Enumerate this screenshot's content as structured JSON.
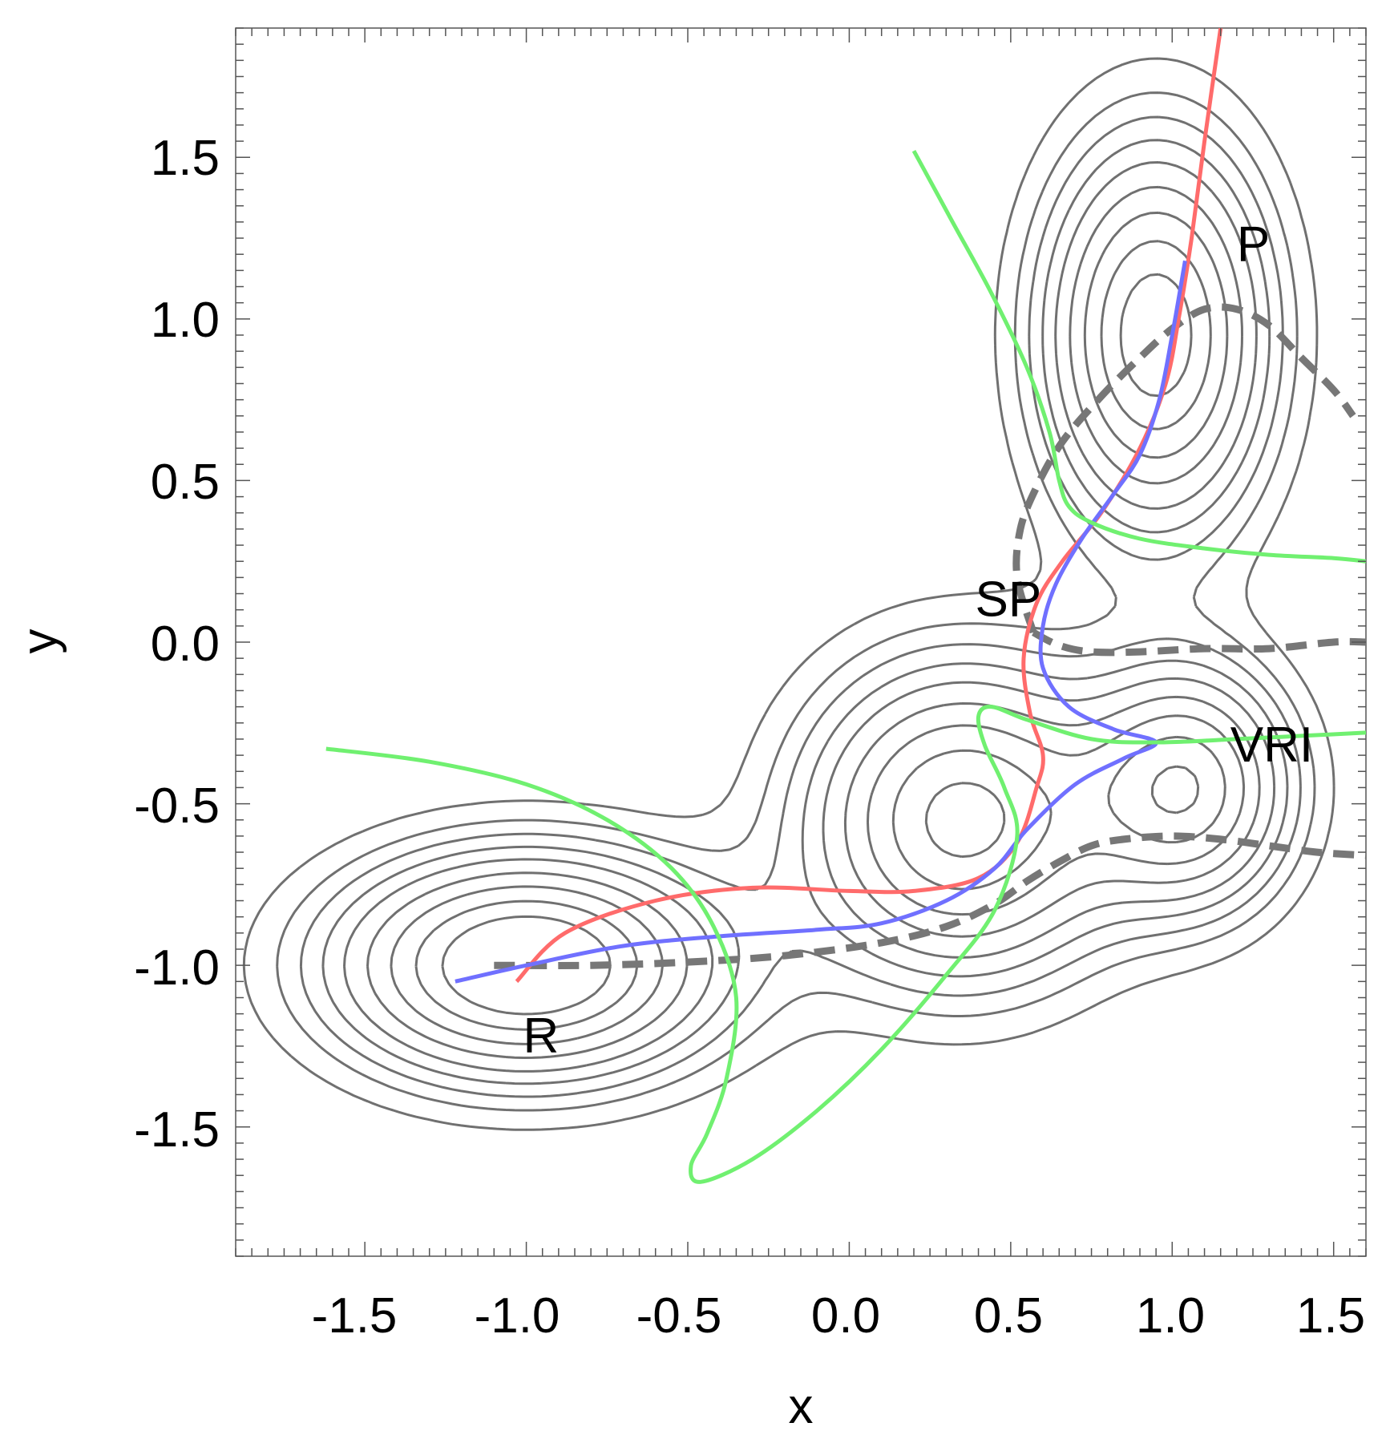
{
  "chart_data": {
    "type": "line",
    "title": "",
    "xlabel": "x",
    "ylabel": "y",
    "xlim": [
      -1.9,
      1.6
    ],
    "ylim": [
      -1.9,
      1.9
    ],
    "x_ticks": [
      "-1.5",
      "-1.0",
      "-0.5",
      "0.0",
      "0.5",
      "1.0",
      "1.5"
    ],
    "y_ticks": [
      "1.5",
      "1.0",
      "0.5",
      "0.0",
      "-0.5",
      "-1.0",
      "-1.5"
    ],
    "grid": false,
    "colors": {
      "contour": "#707070",
      "dashed": "#777777",
      "red": "#ff6b6b",
      "blue": "#7070ff",
      "green": "#70f070"
    },
    "annotations": [
      {
        "text": "P",
        "x": 1.2,
        "y": 1.18
      },
      {
        "text": "SP",
        "x": 0.39,
        "y": 0.08
      },
      {
        "text": "VRI",
        "x": 1.18,
        "y": -0.37
      },
      {
        "text": "R",
        "x": -1.01,
        "y": -1.27
      }
    ],
    "series": [
      {
        "name": "red-path",
        "color": "#ff6b6b",
        "x": [
          -1.03,
          -0.88,
          -0.6,
          -0.3,
          0.0,
          0.2,
          0.4,
          0.52,
          0.58,
          0.6,
          0.56,
          0.54,
          0.58,
          0.66,
          0.78,
          0.9,
          0.98,
          1.02,
          1.06,
          1.1,
          1.15
        ],
        "y": [
          -1.05,
          -0.9,
          -0.8,
          -0.76,
          -0.77,
          -0.77,
          -0.73,
          -0.62,
          -0.45,
          -0.35,
          -0.22,
          -0.05,
          0.12,
          0.25,
          0.4,
          0.6,
          0.8,
          1.0,
          1.25,
          1.55,
          1.9
        ]
      },
      {
        "name": "blue-path",
        "color": "#7070ff",
        "x": [
          -1.22,
          -1.0,
          -0.7,
          -0.4,
          -0.1,
          0.1,
          0.3,
          0.45,
          0.55,
          0.7,
          0.85,
          0.95,
          0.82,
          0.68,
          0.6,
          0.6,
          0.64,
          0.72,
          0.82,
          0.9,
          0.96,
          1.0,
          1.04
        ],
        "y": [
          -1.05,
          -1.0,
          -0.94,
          -0.91,
          -0.89,
          -0.87,
          -0.8,
          -0.7,
          -0.58,
          -0.44,
          -0.36,
          -0.31,
          -0.27,
          -0.2,
          -0.08,
          0.05,
          0.18,
          0.32,
          0.46,
          0.58,
          0.75,
          0.95,
          1.18
        ]
      },
      {
        "name": "dashed-lower",
        "color": "#777777",
        "dashed": true,
        "x": [
          -1.1,
          -0.8,
          -0.5,
          -0.2,
          0.1,
          0.3,
          0.45,
          0.55,
          0.65,
          0.75,
          0.85,
          1.0,
          1.15,
          1.3,
          1.45,
          1.6
        ],
        "y": [
          -1.0,
          -1.0,
          -0.99,
          -0.97,
          -0.93,
          -0.88,
          -0.81,
          -0.74,
          -0.68,
          -0.63,
          -0.61,
          -0.6,
          -0.61,
          -0.63,
          -0.65,
          -0.66
        ]
      },
      {
        "name": "dashed-upper",
        "color": "#777777",
        "dashed": true,
        "x": [
          0.57,
          0.52,
          0.53,
          0.58,
          0.66,
          0.78,
          0.9,
          1.0,
          1.1,
          1.2,
          1.3,
          1.4,
          1.5,
          1.56
        ],
        "y": [
          0.03,
          0.2,
          0.35,
          0.48,
          0.62,
          0.76,
          0.88,
          0.97,
          1.03,
          1.03,
          0.98,
          0.88,
          0.78,
          0.7
        ]
      },
      {
        "name": "dashed-middle",
        "color": "#777777",
        "dashed": true,
        "x": [
          0.57,
          0.65,
          0.75,
          0.9,
          1.1,
          1.3,
          1.5,
          1.6
        ],
        "y": [
          0.03,
          -0.01,
          -0.03,
          -0.03,
          -0.02,
          -0.02,
          0.0,
          0.0
        ]
      },
      {
        "name": "green-left",
        "color": "#70f070",
        "x": [
          -1.62,
          -1.3,
          -1.0,
          -0.75,
          -0.55,
          -0.42,
          -0.35,
          -0.38,
          -0.44,
          -0.49,
          -0.46,
          -0.3,
          -0.1,
          0.1,
          0.3,
          0.45,
          0.52,
          0.48,
          0.42,
          0.4,
          0.44,
          0.55,
          0.75,
          0.95,
          1.2,
          1.4,
          1.6
        ],
        "y": [
          -0.33,
          -0.37,
          -0.44,
          -0.55,
          -0.7,
          -0.88,
          -1.1,
          -1.35,
          -1.52,
          -1.62,
          -1.67,
          -1.6,
          -1.45,
          -1.26,
          -1.03,
          -0.83,
          -0.6,
          -0.45,
          -0.32,
          -0.23,
          -0.2,
          -0.24,
          -0.3,
          -0.31,
          -0.3,
          -0.29,
          -0.28
        ]
      },
      {
        "name": "green-right",
        "color": "#70f070",
        "x": [
          0.2,
          0.32,
          0.44,
          0.55,
          0.62,
          0.65,
          0.68,
          0.75,
          0.9,
          1.1,
          1.3,
          1.5,
          1.6
        ],
        "y": [
          1.52,
          1.3,
          1.08,
          0.85,
          0.65,
          0.5,
          0.42,
          0.37,
          0.32,
          0.29,
          0.27,
          0.26,
          0.25
        ]
      }
    ]
  }
}
